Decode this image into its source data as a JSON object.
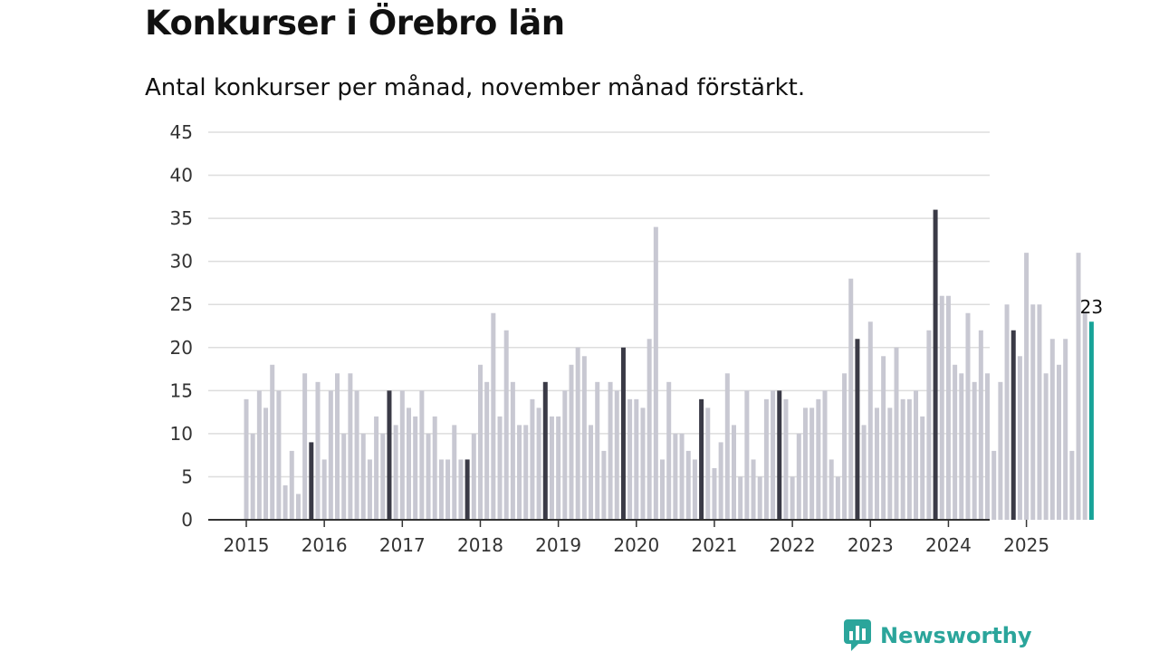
{
  "header": {
    "title": "Konkurser i Örebro län",
    "subtitle": "Antal konkurser per månad, november månad förstärkt."
  },
  "brand": {
    "name": "Newsworthy"
  },
  "colors": {
    "bar": "#c8c8d2",
    "highlight": "#3a3a46",
    "latest": "#17a398",
    "grid": "#dddddd",
    "axis": "#333333",
    "brand": "#2ba59b"
  },
  "chart_data": {
    "type": "bar",
    "title": "Konkurser i Örebro län",
    "subtitle": "Antal konkurser per månad, november månad förstärkt.",
    "xlabel": "",
    "ylabel": "",
    "ylim": [
      0,
      45
    ],
    "yticks": [
      0,
      5,
      10,
      15,
      20,
      25,
      30,
      35,
      40,
      45
    ],
    "xticks": [
      "2015",
      "2016",
      "2017",
      "2018",
      "2019",
      "2020",
      "2021",
      "2022",
      "2023",
      "2024",
      "2025"
    ],
    "start": "2015-01",
    "highlight_month": "november",
    "grid": true,
    "values": [
      14,
      10,
      15,
      13,
      18,
      15,
      4,
      8,
      3,
      17,
      9,
      16,
      7,
      15,
      17,
      10,
      17,
      15,
      10,
      7,
      12,
      10,
      15,
      11,
      15,
      13,
      12,
      15,
      10,
      12,
      7,
      7,
      11,
      7,
      7,
      10,
      18,
      16,
      24,
      12,
      22,
      16,
      11,
      11,
      14,
      13,
      16,
      12,
      12,
      15,
      18,
      20,
      19,
      11,
      16,
      8,
      16,
      15,
      20,
      14,
      14,
      13,
      21,
      34,
      7,
      16,
      10,
      10,
      8,
      7,
      14,
      13,
      6,
      9,
      17,
      11,
      5,
      15,
      7,
      5,
      14,
      15,
      15,
      14,
      5,
      10,
      13,
      13,
      14,
      15,
      7,
      5,
      17,
      28,
      21,
      11,
      23,
      13,
      19,
      13,
      20,
      14,
      14,
      15,
      12,
      22,
      36,
      26,
      26,
      18,
      17,
      24,
      16,
      22,
      17,
      8,
      16,
      25,
      22,
      19,
      31,
      25,
      25,
      17,
      21,
      18,
      21,
      8,
      31,
      24,
      23
    ],
    "latest_value_label": "23"
  }
}
